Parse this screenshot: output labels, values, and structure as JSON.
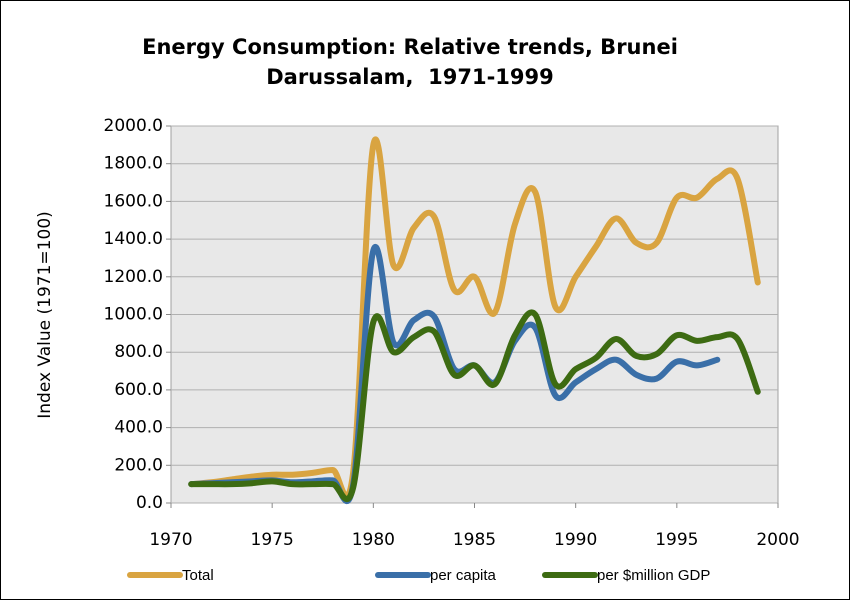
{
  "chart_data": {
    "type": "line",
    "title_lines": [
      "Energy Consumption: Relative trends, Brunei",
      "Darussalam,  1971-1999"
    ],
    "y_axis_label": "Index Value (1971=100)",
    "x": [
      1971,
      1972,
      1973,
      1974,
      1975,
      1976,
      1977,
      1978,
      1979,
      1980,
      1981,
      1982,
      1983,
      1984,
      1985,
      1986,
      1987,
      1988,
      1989,
      1990,
      1991,
      1992,
      1993,
      1994,
      1995,
      1996,
      1997,
      1998,
      1999
    ],
    "series": [
      {
        "name": "Total",
        "color": "#d9a441",
        "values": [
          100,
          110,
          125,
          140,
          150,
          150,
          160,
          175,
          160,
          1900,
          1260,
          1460,
          1520,
          1130,
          1200,
          1010,
          1480,
          1650,
          1040,
          1200,
          1360,
          1510,
          1380,
          1380,
          1620,
          1620,
          1720,
          1720,
          1170
        ]
      },
      {
        "name": "per capita",
        "color": "#3a6fa8",
        "values": [
          100,
          105,
          110,
          115,
          120,
          110,
          115,
          120,
          95,
          1340,
          850,
          970,
          990,
          710,
          730,
          640,
          860,
          930,
          570,
          640,
          710,
          760,
          680,
          660,
          750,
          730,
          760,
          null,
          null
        ]
      },
      {
        "name": "per $million GDP",
        "color": "#3d6b12",
        "values": [
          100,
          100,
          100,
          105,
          115,
          100,
          100,
          100,
          80,
          960,
          800,
          880,
          910,
          680,
          730,
          630,
          890,
          1000,
          630,
          710,
          770,
          870,
          780,
          790,
          890,
          860,
          880,
          870,
          590
        ]
      }
    ],
    "xlim": [
      1970,
      2000
    ],
    "xticks": [
      1970,
      1975,
      1980,
      1985,
      1990,
      1995,
      2000
    ],
    "ylim": [
      0,
      2000
    ],
    "yticks": [
      {
        "value": 0,
        "label": "0.0"
      },
      {
        "value": 200,
        "label": "200.0"
      },
      {
        "value": 400,
        "label": "400.0"
      },
      {
        "value": 600,
        "label": "600.0"
      },
      {
        "value": 800,
        "label": "800.0"
      },
      {
        "value": 1000,
        "label": "1000.0"
      },
      {
        "value": 1200,
        "label": "1200.0"
      },
      {
        "value": 1400,
        "label": "1400.0"
      },
      {
        "value": 1600,
        "label": "1600.0"
      },
      {
        "value": 1800,
        "label": "1800.0"
      },
      {
        "value": 2000,
        "label": "2000.0"
      }
    ],
    "grid": true,
    "legend": "bottom"
  }
}
